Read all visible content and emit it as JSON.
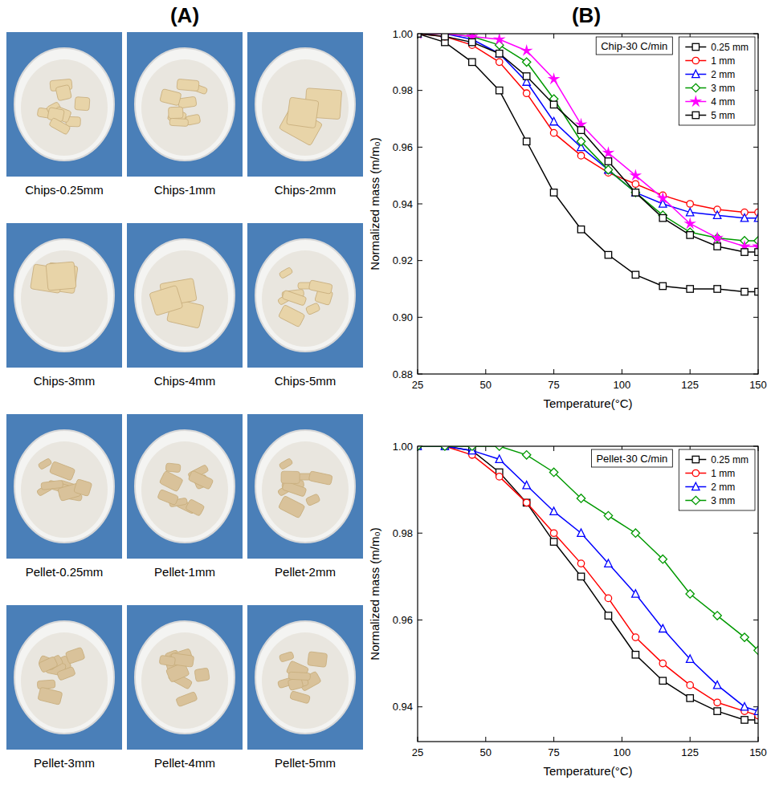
{
  "panel_a": {
    "label": "(A)",
    "captions": [
      "Chips-0.25mm",
      "Chips-1mm",
      "Chips-2mm",
      "Chips-3mm",
      "Chips-4mm",
      "Chips-5mm",
      "Pellet-0.25mm",
      "Pellet-1mm",
      "Pellet-2mm",
      "Pellet-3mm",
      "Pellet-4mm",
      "Pellet-5mm"
    ]
  },
  "panel_b": {
    "label": "(B)"
  },
  "chart_data": [
    {
      "type": "line",
      "title": "Chip-30 C/min",
      "x_label": "Temperature(°C)",
      "y_label": "Normalized mass (m/m₀)",
      "x": [
        25,
        35,
        45,
        55,
        65,
        75,
        85,
        95,
        105,
        115,
        125,
        135,
        145,
        150
      ],
      "xlim": [
        25,
        150
      ],
      "xticks": [
        25,
        50,
        75,
        100,
        125,
        150
      ],
      "ylim": [
        0.88,
        1.0
      ],
      "yticks": [
        0.88,
        {
          "value": 0.9,
          "label": "0.90"
        },
        0.92,
        0.94,
        0.96,
        0.98,
        {
          "value": 1,
          "label": "1.00"
        }
      ],
      "legend": "top-right",
      "grid": false,
      "series": [
        {
          "name": "0.25 mm",
          "color": "#000000",
          "marker": "square",
          "values": [
            1.0,
            0.997,
            0.99,
            0.98,
            0.962,
            0.944,
            0.931,
            0.922,
            0.915,
            0.911,
            0.91,
            0.91,
            0.909,
            0.909
          ]
        },
        {
          "name": "1 mm",
          "color": "#ff0000",
          "marker": "circle",
          "values": [
            1.0,
            0.999,
            0.996,
            0.99,
            0.979,
            0.965,
            0.957,
            0.951,
            0.947,
            0.943,
            0.94,
            0.938,
            0.937,
            0.937
          ]
        },
        {
          "name": "2 mm",
          "color": "#0000ff",
          "marker": "triangle",
          "values": [
            1.0,
            1.0,
            0.998,
            0.993,
            0.983,
            0.969,
            0.96,
            0.952,
            0.944,
            0.94,
            0.937,
            0.936,
            0.935,
            0.935
          ]
        },
        {
          "name": "3 mm",
          "color": "#009900",
          "marker": "diamond",
          "values": [
            1.0,
            1.0,
            0.999,
            0.996,
            0.99,
            0.977,
            0.962,
            0.952,
            0.944,
            0.936,
            0.93,
            0.928,
            0.927,
            0.927
          ]
        },
        {
          "name": "4 mm",
          "color": "#ff00ff",
          "marker": "star",
          "values": [
            1.0,
            1.0,
            0.999,
            0.998,
            0.994,
            0.984,
            0.968,
            0.958,
            0.95,
            0.942,
            0.933,
            0.928,
            0.925,
            0.925
          ]
        },
        {
          "name": "5 mm",
          "color": "#000000",
          "marker": "square",
          "values": [
            1.0,
            0.999,
            0.997,
            0.993,
            0.985,
            0.975,
            0.966,
            0.955,
            0.944,
            0.935,
            0.929,
            0.925,
            0.923,
            0.923
          ]
        }
      ]
    },
    {
      "type": "line",
      "title": "Pellet-30 C/min",
      "x_label": "Temperature(°C)",
      "y_label": "Normalized mass (m/m₀)",
      "x": [
        25,
        35,
        45,
        55,
        65,
        75,
        85,
        95,
        105,
        115,
        125,
        135,
        145,
        150
      ],
      "xlim": [
        25,
        150
      ],
      "xticks": [
        25,
        50,
        75,
        100,
        125,
        150
      ],
      "ylim": [
        0.932,
        1.0
      ],
      "yticks": [
        0.94,
        0.96,
        0.98,
        {
          "value": 1,
          "label": "1.00"
        }
      ],
      "legend": "top-right",
      "grid": false,
      "series": [
        {
          "name": "0.25 mm",
          "color": "#000000",
          "marker": "square",
          "values": [
            1.0,
            1.0,
            0.999,
            0.994,
            0.987,
            0.978,
            0.97,
            0.961,
            0.952,
            0.946,
            0.942,
            0.939,
            0.937,
            0.937
          ]
        },
        {
          "name": "1 mm",
          "color": "#ff0000",
          "marker": "circle",
          "values": [
            1.0,
            1.0,
            0.998,
            0.993,
            0.987,
            0.98,
            0.973,
            0.965,
            0.956,
            0.95,
            0.945,
            0.941,
            0.939,
            0.938
          ]
        },
        {
          "name": "2 mm",
          "color": "#0000ff",
          "marker": "triangle",
          "values": [
            1.0,
            1.0,
            0.999,
            0.997,
            0.991,
            0.985,
            0.98,
            0.973,
            0.966,
            0.958,
            0.951,
            0.945,
            0.94,
            0.939
          ]
        },
        {
          "name": "3 mm",
          "color": "#009900",
          "marker": "diamond",
          "values": [
            1.0,
            1.0,
            1.0,
            1.0,
            0.998,
            0.994,
            0.988,
            0.984,
            0.98,
            0.974,
            0.966,
            0.961,
            0.956,
            0.953
          ]
        }
      ]
    }
  ]
}
